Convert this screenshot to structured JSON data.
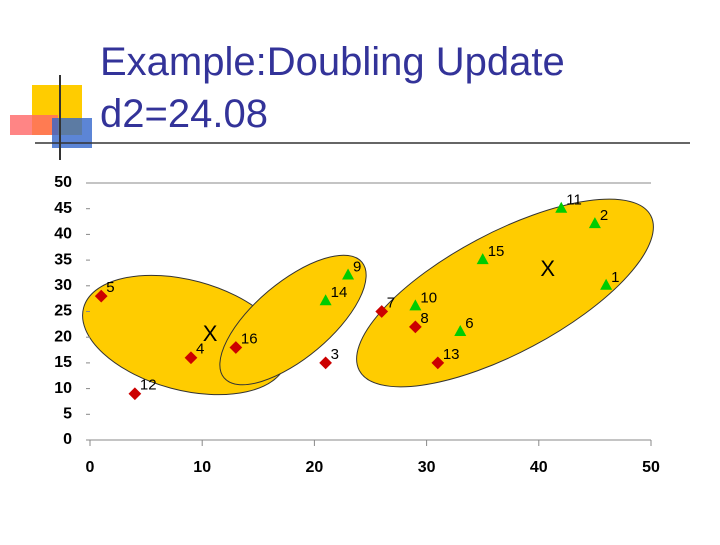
{
  "slide": {
    "title": [
      "Example:Doubling Update",
      "d2=24.08"
    ]
  },
  "chart_data": {
    "type": "scatter",
    "xlim": [
      0,
      50
    ],
    "xticks": [
      0,
      10,
      20,
      30,
      40,
      50
    ],
    "ylim": [
      0,
      50
    ],
    "yticks": [
      0,
      5,
      10,
      15,
      20,
      25,
      30,
      35,
      40,
      45,
      50
    ],
    "series": [
      {
        "marker": "diamond",
        "color": "#cc0000",
        "labels": [
          "5",
          "4",
          "16",
          "12",
          "3",
          "7",
          "8",
          "13"
        ],
        "x": [
          1,
          9,
          13,
          4,
          21,
          26,
          29,
          31
        ],
        "values": [
          28,
          16,
          18,
          9,
          15,
          25,
          22,
          15
        ]
      },
      {
        "marker": "triangle",
        "color": "#00cc00",
        "labels": [
          "11",
          "2",
          "9",
          "15",
          "14",
          "10",
          "6",
          "1"
        ],
        "x": [
          42,
          45,
          23,
          35,
          21,
          29,
          33,
          46
        ],
        "values": [
          45,
          42,
          32,
          35,
          27,
          26,
          21,
          30
        ]
      },
      {
        "marker": "label",
        "color": "#000000",
        "labels": [
          "X",
          "X"
        ],
        "x": [
          10.7,
          40.8
        ],
        "values": [
          20.4,
          33
        ]
      }
    ]
  }
}
